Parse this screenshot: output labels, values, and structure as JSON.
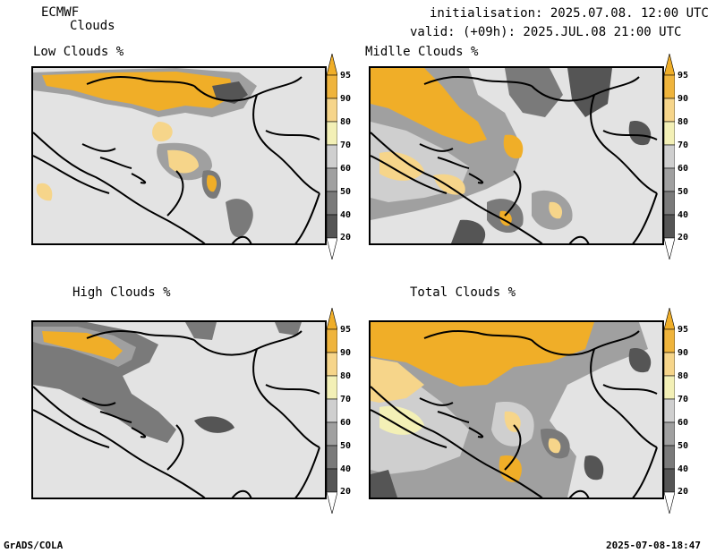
{
  "header": {
    "model": "ECMWF",
    "product": "Clouds",
    "init": "initialisation: 2025.07.08. 12:00 UTC",
    "valid": "valid: (+09h): 2025.JUL.08 21:00 UTC"
  },
  "panels": [
    {
      "title": "Low Clouds %"
    },
    {
      "title": "Midlle Clouds %"
    },
    {
      "title": "High Clouds %"
    },
    {
      "title": "Total Clouds %"
    }
  ],
  "colorbar": {
    "levels": [
      "95",
      "90",
      "80",
      "70",
      "60",
      "50",
      "40",
      "20"
    ],
    "colors": {
      "c20": "#ffffff",
      "c20_40": "#555555",
      "c40_50": "#7a7a7a",
      "c50_60": "#a0a0a0",
      "c60_70": "#cfcfcf",
      "c70_80": "#f3f0b6",
      "c80_90": "#f6d58a",
      "c90_95": "#efb43c",
      "c95": "#f0ae28",
      "background": "#e3e3e3"
    }
  },
  "footer": {
    "left": "GrADS/COLA",
    "right": "2025-07-08-18:47"
  }
}
